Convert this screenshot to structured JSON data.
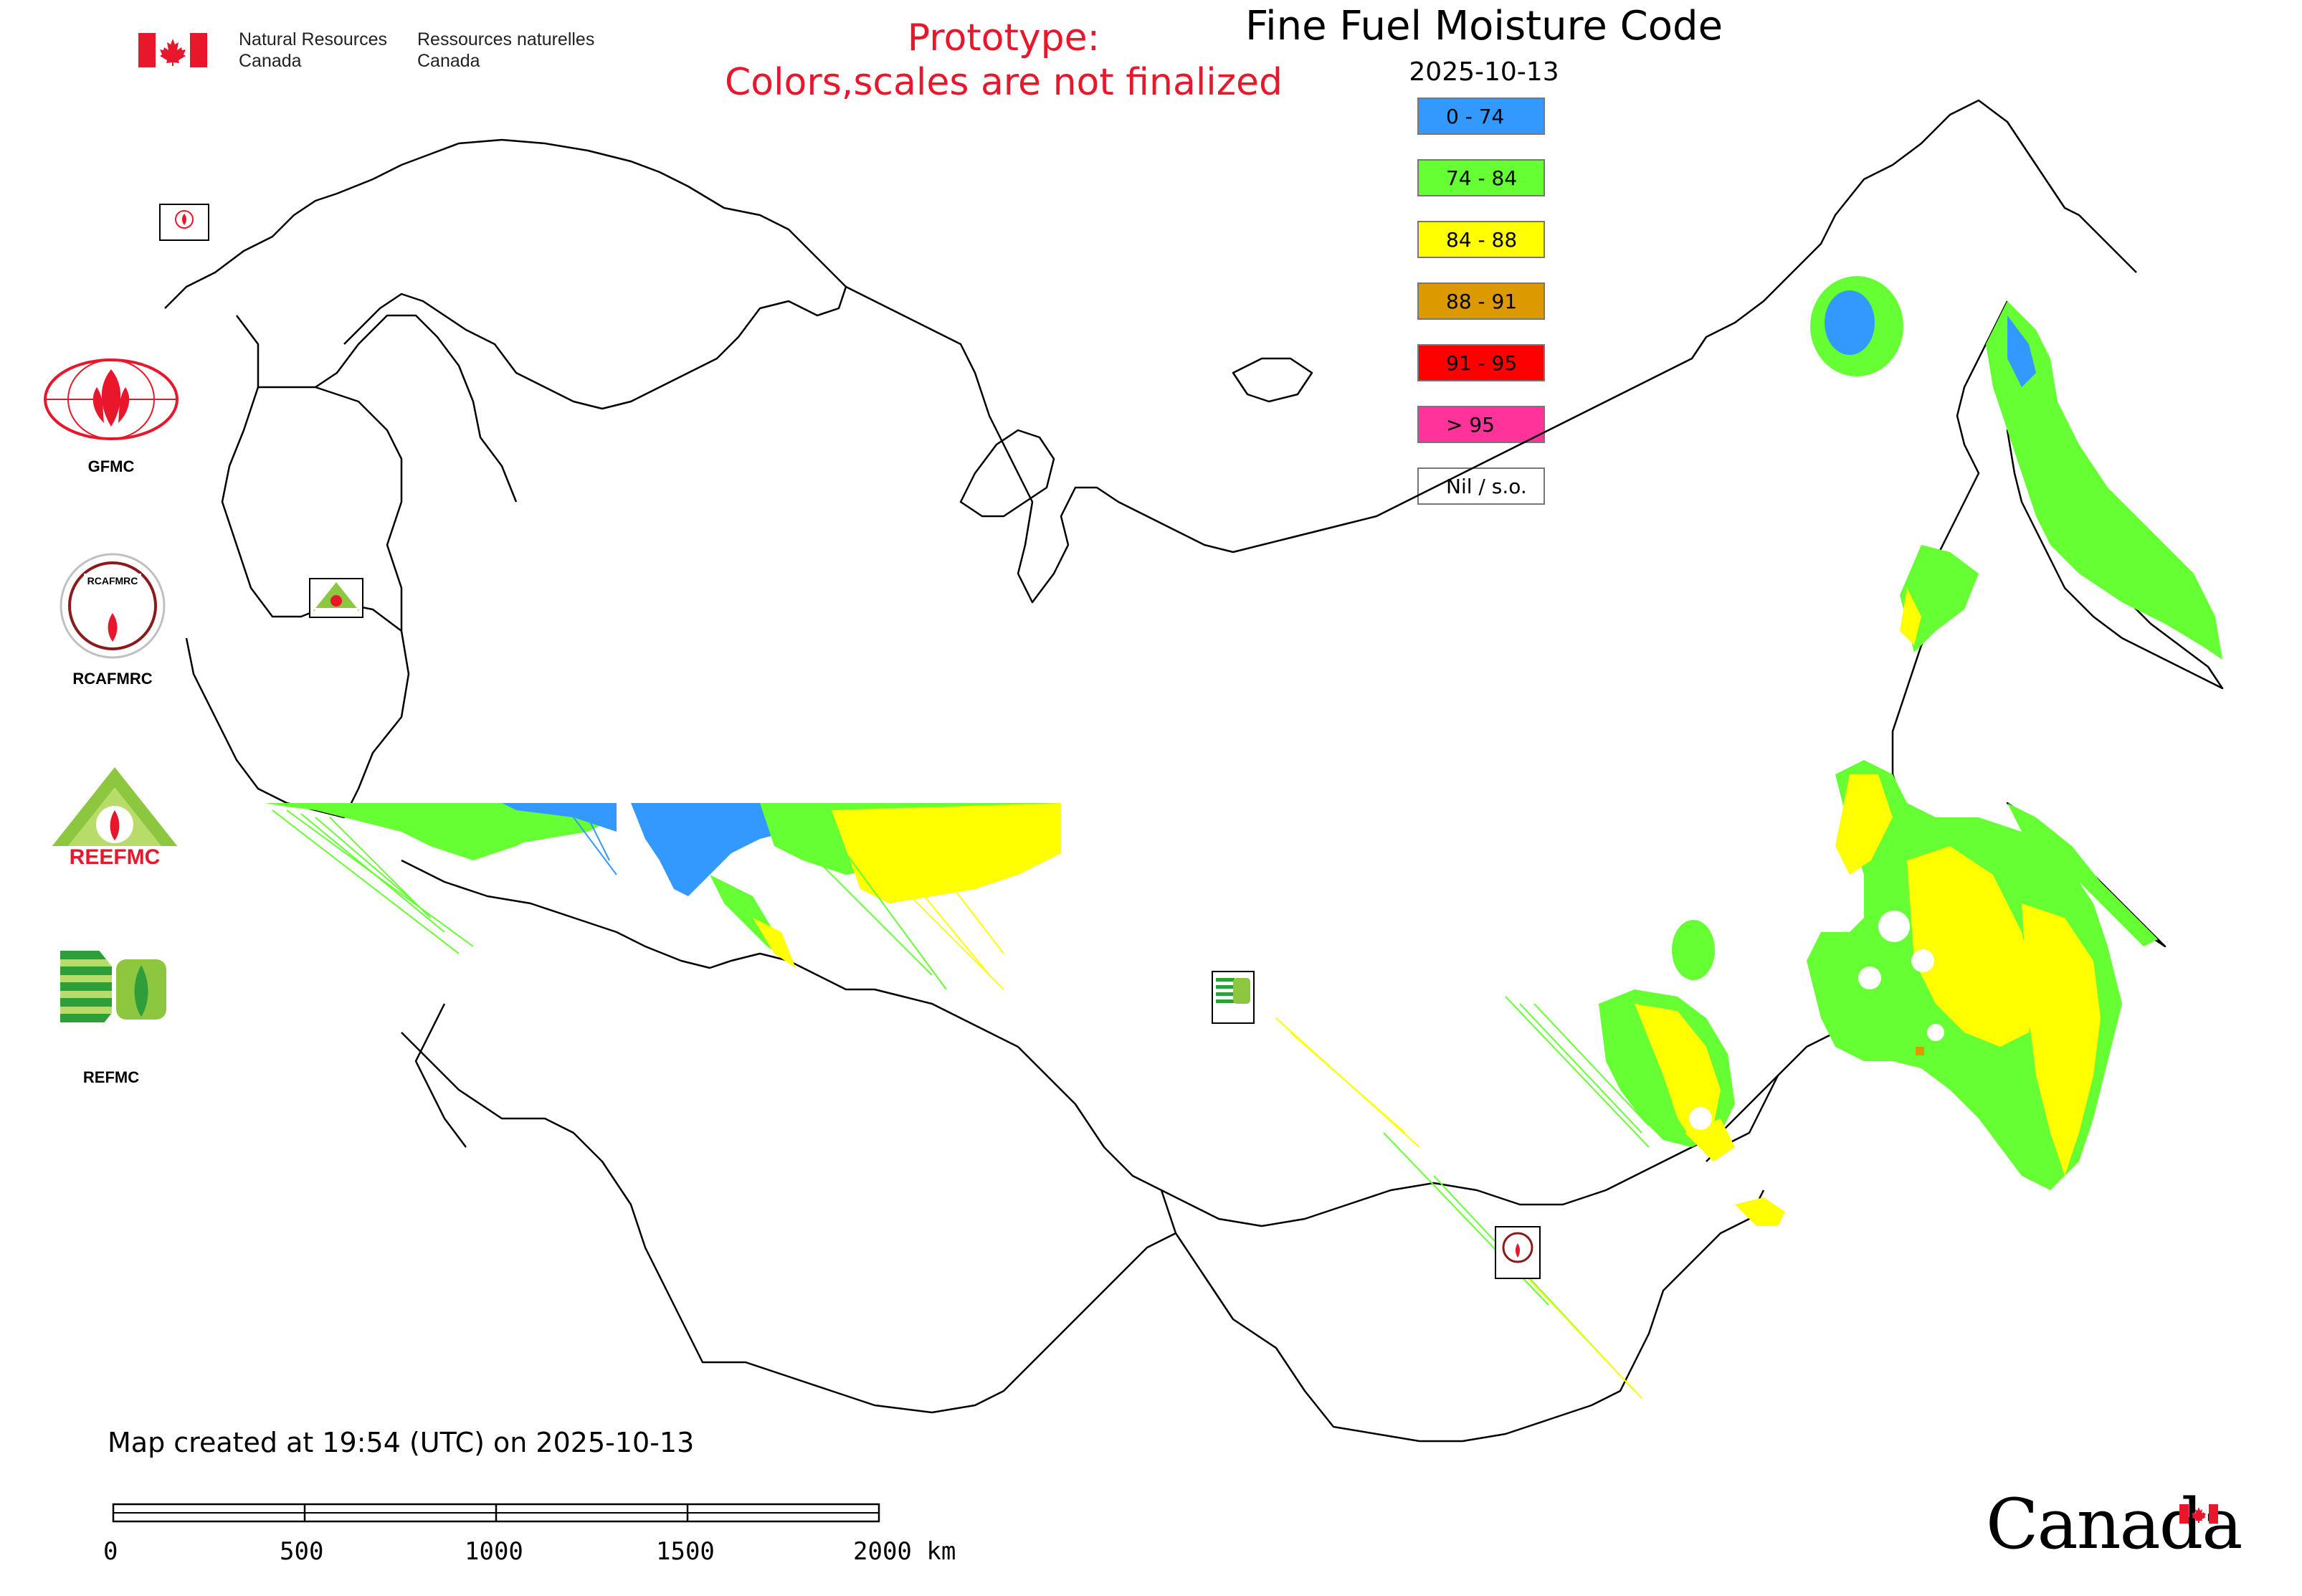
{
  "header": {
    "department_en_line1": "Natural Resources",
    "department_en_line2": "Canada",
    "department_fr_line1": "Ressources naturelles",
    "department_fr_line2": "Canada",
    "prototype_line1": "Prototype:",
    "prototype_line2": "Colors,scales are not finalized"
  },
  "map": {
    "title": "Fine Fuel Moisture Code",
    "date": "2025-10-13",
    "created_text": "Map created at 19:54 (UTC) on 2025-10-13"
  },
  "legend": {
    "items": [
      {
        "label": "0 - 74",
        "color": "#3399ff"
      },
      {
        "label": "74 - 84",
        "color": "#66ff33"
      },
      {
        "label": "84 - 88",
        "color": "#ffff00"
      },
      {
        "label": "88 - 91",
        "color": "#dd9900"
      },
      {
        "label": "91 - 95",
        "color": "#ff0000"
      },
      {
        "label": "> 95",
        "color": "#ff3399"
      },
      {
        "label": "Nil / s.o.",
        "color": "#ffffff"
      }
    ]
  },
  "organizations": {
    "gfmc": "GFMC",
    "rcafmrc": "RCAFMRC",
    "reefmc": "REEFMC",
    "refmc": "REFMC"
  },
  "scale_bar": {
    "ticks": [
      "0",
      "500",
      "1000",
      "1500",
      "2000 km"
    ]
  },
  "footer": {
    "wordmark": "Canada"
  }
}
